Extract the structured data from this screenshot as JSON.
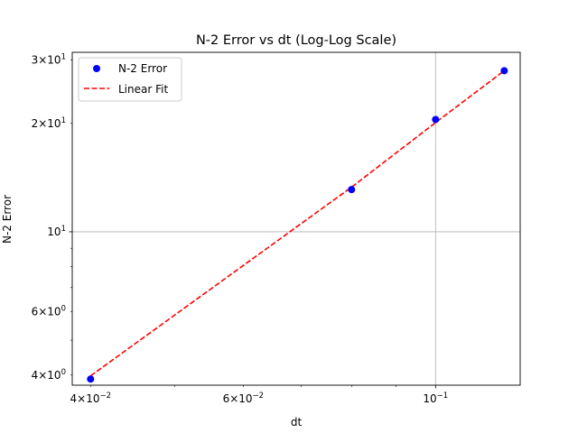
{
  "chart_data": {
    "type": "scatter",
    "title": "N-2 Error vs dt (Log-Log Scale)",
    "xlabel": "dt",
    "ylabel": "N-2 Error",
    "xscale": "log",
    "yscale": "log",
    "xlim": [
      0.0381,
      0.1252
    ],
    "ylim": [
      3.75,
      31.5
    ],
    "grid": "major",
    "legend_position": "top-left",
    "x_ticks": [
      {
        "value": 0.04,
        "base": "4×10",
        "exp": "−2"
      },
      {
        "value": 0.06,
        "base": "6×10",
        "exp": "−2"
      },
      {
        "value": 0.1,
        "base": "10",
        "exp": "−1"
      }
    ],
    "y_ticks": [
      {
        "value": 4,
        "base": "4×10",
        "exp": "0"
      },
      {
        "value": 6,
        "base": "6×10",
        "exp": "0"
      },
      {
        "value": 10,
        "base": "10",
        "exp": "1"
      },
      {
        "value": 20,
        "base": "2×10",
        "exp": "1"
      },
      {
        "value": 30,
        "base": "3×10",
        "exp": "1"
      }
    ],
    "series": [
      {
        "name": "N-2 Error",
        "kind": "markers",
        "color": "#0000ff",
        "x": [
          0.04,
          0.08,
          0.1,
          0.12
        ],
        "y": [
          3.9,
          13.1,
          20.5,
          28.0
        ]
      },
      {
        "name": "Linear Fit",
        "kind": "dashed-line",
        "color": "#ff0000",
        "x": [
          0.04,
          0.08,
          0.1,
          0.12
        ],
        "y": [
          3.98,
          13.3,
          20.1,
          28.0
        ]
      }
    ]
  }
}
